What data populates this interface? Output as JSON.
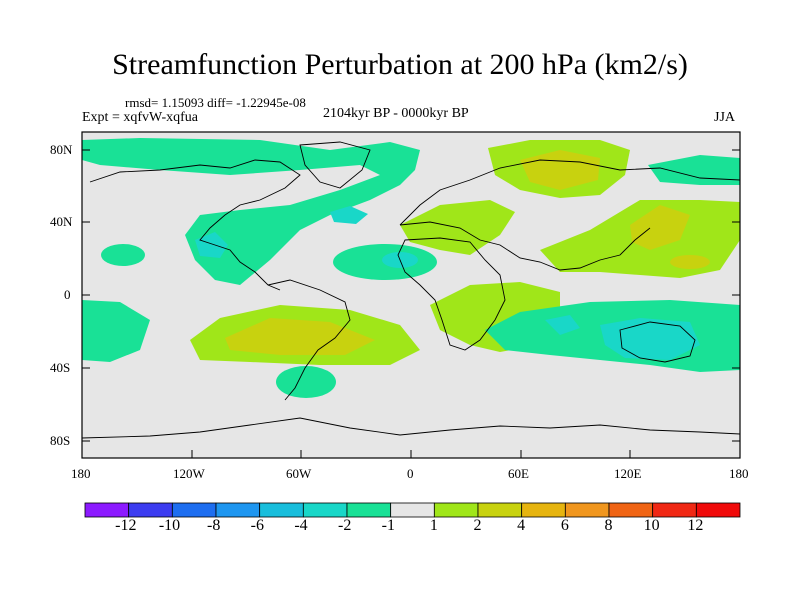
{
  "figure": {
    "title": "Streamfunction Perturbation at 200 hPa (km2/s)",
    "rmsd_line": "rmsd= 1.15093  diff= -1.22945e-08",
    "expt_line": "Expt = xqfvW-xqfua",
    "period_line": "2104kyr BP - 0000kyr BP",
    "season": "JJA"
  },
  "axes": {
    "lat_ticks": [
      "80N",
      "40N",
      "0",
      "40S",
      "80S"
    ],
    "lon_ticks": [
      "180",
      "120W",
      "60W",
      "0",
      "60E",
      "120E",
      "180"
    ]
  },
  "colorbar": {
    "labels": [
      "-12",
      "-10",
      "-8",
      "-6",
      "-4",
      "-2",
      "-1",
      "1",
      "2",
      "4",
      "6",
      "8",
      "10",
      "12"
    ],
    "colors": [
      "#8c1aff",
      "#3c3cf0",
      "#1e6ef0",
      "#1e96f0",
      "#19bedc",
      "#19d7c8",
      "#19e196",
      "#e6e6e6",
      "#a0e619",
      "#c8d20f",
      "#e6b40f",
      "#f0961e",
      "#f06414",
      "#f02814",
      "#f00a0a"
    ]
  },
  "field": {
    "background_color": "#e6e6e6",
    "blobs": [
      {
        "name": "north-atlantic-negative",
        "level": "-2",
        "color": "#19e196"
      },
      {
        "name": "gulf-negative-core",
        "level": "-4",
        "color": "#19d7c8"
      },
      {
        "name": "arctic-negative",
        "level": "-2",
        "color": "#19e196"
      },
      {
        "name": "siberia-positive",
        "level": "2",
        "color": "#a0e619"
      },
      {
        "name": "siberia-positive-core",
        "level": "4",
        "color": "#c8d20f"
      },
      {
        "name": "east-asia-positive",
        "level": "2",
        "color": "#a0e619"
      },
      {
        "name": "europe-positive",
        "level": "2",
        "color": "#a0e619"
      },
      {
        "name": "south-atlantic-positive",
        "level": "2",
        "color": "#a0e619"
      },
      {
        "name": "south-atlantic-positive-core",
        "level": "4",
        "color": "#c8d20f"
      },
      {
        "name": "australia-negative",
        "level": "-2",
        "color": "#19e196"
      },
      {
        "name": "australia-negative-core",
        "level": "-4",
        "color": "#19d7c8"
      },
      {
        "name": "africa-positive",
        "level": "2",
        "color": "#a0e619"
      }
    ]
  }
}
